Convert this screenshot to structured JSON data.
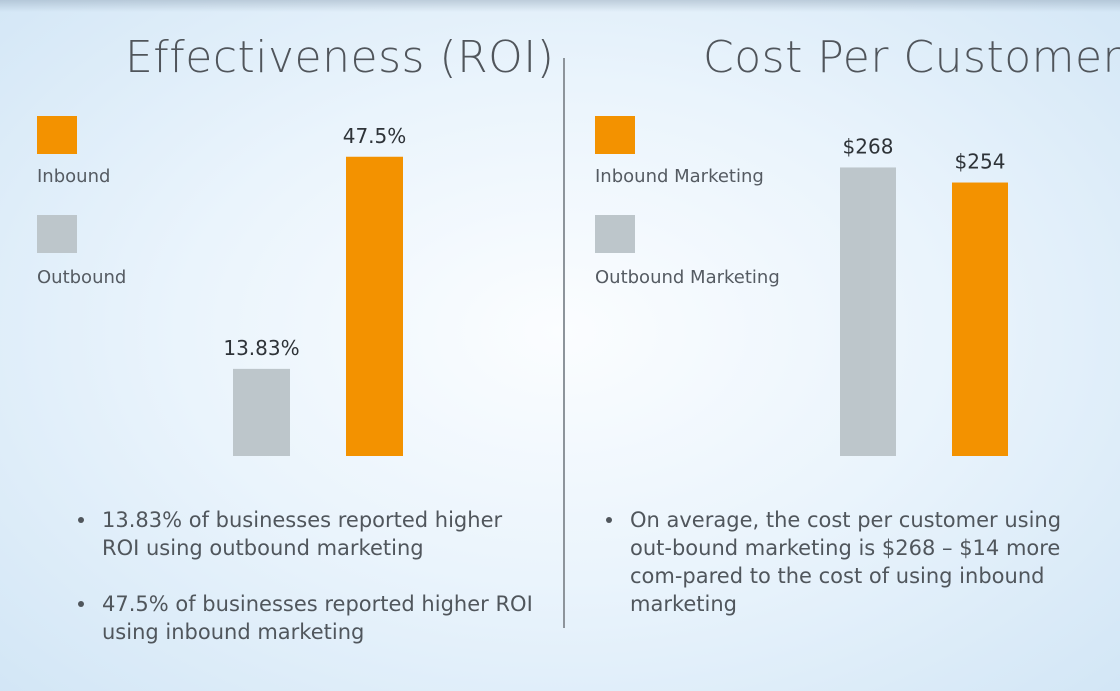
{
  "colors": {
    "inbound": "#f39200",
    "outbound": "#bdc6cb",
    "divider": "#8d949b",
    "text": "#50555b"
  },
  "chart_data": [
    {
      "type": "bar",
      "title": "Effectiveness (ROI)",
      "categories": [
        "Outbound",
        "Inbound"
      ],
      "values": [
        13.83,
        47.5
      ],
      "data_labels": [
        "13.83%",
        "47.5%"
      ],
      "colors": [
        "#bdc6cb",
        "#f39200"
      ],
      "legend": [
        "Inbound",
        "Outbound"
      ],
      "legend_placement": "left",
      "ylim": [
        0,
        50
      ],
      "grid": false
    },
    {
      "type": "bar",
      "title": "Cost Per Customer",
      "categories": [
        "Outbound Marketing",
        "Inbound Marketing"
      ],
      "values": [
        268,
        254
      ],
      "data_labels": [
        "$268",
        "$254"
      ],
      "colors": [
        "#bdc6cb",
        "#f39200"
      ],
      "legend": [
        "Inbound Marketing",
        "Outbound Marketing"
      ],
      "legend_placement": "left",
      "ylim": [
        0,
        300
      ],
      "grid": false
    }
  ],
  "notes": {
    "roi": [
      "13.83% of businesses reported higher ROI using outbound marketing",
      "47.5% of businesses reported higher ROI using inbound marketing"
    ],
    "cost": [
      "On average, the cost per customer using out-bound marketing is $268 – $14 more com-pared to the cost of using inbound marketing"
    ]
  }
}
